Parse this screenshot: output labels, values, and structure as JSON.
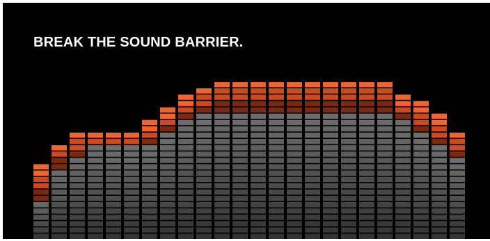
{
  "headline": "BREAK THE SOUND BARRIER.",
  "colors": {
    "background": "#000000",
    "headline": "#ffffff",
    "peak_bright": "#f2642c",
    "peak_mid": "#cc4a1e",
    "peak_dark": "#7a2a10",
    "level_top": "#6e6e6e",
    "level_bottom": "#2a2a2a",
    "segment_gap": "#000000"
  },
  "equalizer": {
    "segment_count_total": 17,
    "bands": [
      {
        "level": 0.32,
        "peak": 0.58
      },
      {
        "level": 0.56,
        "peak": 0.76
      },
      {
        "level": 0.66,
        "peak": 0.82
      },
      {
        "level": 0.72,
        "peak": 0.82
      },
      {
        "level": 0.72,
        "peak": 0.82
      },
      {
        "level": 0.72,
        "peak": 0.82
      },
      {
        "level": 0.72,
        "peak": 0.92
      },
      {
        "level": 0.82,
        "peak": 1.02
      },
      {
        "level": 0.92,
        "peak": 1.12
      },
      {
        "level": 0.96,
        "peak": 1.18
      },
      {
        "level": 1.0,
        "peak": 1.24
      },
      {
        "level": 1.0,
        "peak": 1.24
      },
      {
        "level": 1.0,
        "peak": 1.24
      },
      {
        "level": 1.0,
        "peak": 1.24
      },
      {
        "level": 1.0,
        "peak": 1.24
      },
      {
        "level": 1.0,
        "peak": 1.24
      },
      {
        "level": 1.0,
        "peak": 1.24
      },
      {
        "level": 1.0,
        "peak": 1.24
      },
      {
        "level": 1.0,
        "peak": 1.24
      },
      {
        "level": 1.0,
        "peak": 1.24
      },
      {
        "level": 0.92,
        "peak": 1.12
      },
      {
        "level": 0.82,
        "peak": 1.06
      },
      {
        "level": 0.72,
        "peak": 0.96
      },
      {
        "level": 0.62,
        "peak": 0.84
      }
    ]
  }
}
